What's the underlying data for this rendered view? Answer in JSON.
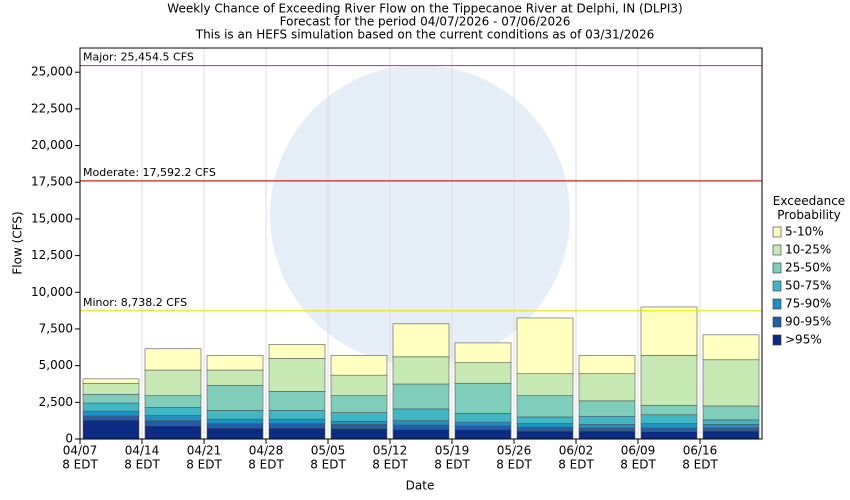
{
  "chart_data": {
    "type": "stacked_bar",
    "title": "Weekly Chance of Exceeding River Flow on the Tippecanoe River at Delphi, IN (DLPI3)",
    "subtitle": "Forecast for the period 04/07/2026 - 07/06/2026",
    "note": "This is an HEFS simulation based on the current conditions as of 03/31/2026",
    "x_label": "Date",
    "y_label": "Flow (CFS)",
    "categories": [
      "04/07",
      "04/14",
      "04/21",
      "04/28",
      "05/05",
      "05/12",
      "05/19",
      "05/26",
      "06/02",
      "06/09",
      "06/16"
    ],
    "category_suffix": "8 EDT",
    "ylim": [
      0,
      26650
    ],
    "yticks": [
      0,
      {
        "value": 2500,
        "label": "2,500"
      },
      {
        "value": 5000,
        "label": "5,000"
      },
      {
        "value": 7500,
        "label": "7,500"
      },
      {
        "value": 10000,
        "label": "10,000"
      },
      {
        "value": 12500,
        "label": "12,500"
      },
      {
        "value": 15000,
        "label": "15,000"
      },
      {
        "value": 17500,
        "label": "17,500"
      },
      {
        "value": 20000,
        "label": "20,000"
      },
      {
        "value": 22500,
        "label": "22,500"
      },
      {
        "value": 25000,
        "label": "25,000"
      }
    ],
    "x_grid": true,
    "legend_title": "Exceedance Probability",
    "legend_position": "right",
    "series": [
      {
        "name": ">95%",
        "color": "#0c2c84",
        "values": [
          1300,
          900,
          750,
          750,
          700,
          650,
          650,
          550,
          550,
          500,
          550
        ]
      },
      {
        "name": "90-95%",
        "color": "#225ea8",
        "values": [
          270,
          350,
          300,
          300,
          300,
          300,
          250,
          250,
          200,
          250,
          200
        ]
      },
      {
        "name": "75-90%",
        "color": "#1d91c0",
        "values": [
          330,
          350,
          300,
          300,
          200,
          300,
          250,
          250,
          250,
          300,
          250
        ]
      },
      {
        "name": "50-75%",
        "color": "#41b6c4",
        "values": [
          550,
          550,
          600,
          600,
          600,
          800,
          600,
          450,
          550,
          600,
          300
        ]
      },
      {
        "name": "25-50%",
        "color": "#7fcdbb",
        "values": [
          600,
          800,
          1700,
          1300,
          1150,
          1700,
          2050,
          1450,
          1050,
          650,
          950
        ]
      },
      {
        "name": "10-25%",
        "color": "#c7e9b4",
        "values": [
          750,
          1750,
          1050,
          2250,
          1400,
          1850,
          1400,
          1500,
          1850,
          3400,
          3150
        ]
      },
      {
        "name": "5-10%",
        "color": "#ffffc0",
        "values": [
          300,
          1450,
          1000,
          950,
          1350,
          2250,
          1350,
          3800,
          1250,
          3300,
          1700
        ]
      }
    ],
    "thresholds": [
      {
        "label": "Major: 25,454.5 CFS",
        "value": 25454.5,
        "color": "#cc33cc"
      },
      {
        "label": "Moderate: 17,592.2 CFS",
        "value": 17592.2,
        "color": "#cc2222"
      },
      {
        "label": "Minor: 8,738.2 CFS",
        "value": 8738.2,
        "color": "#e6e600"
      }
    ]
  }
}
